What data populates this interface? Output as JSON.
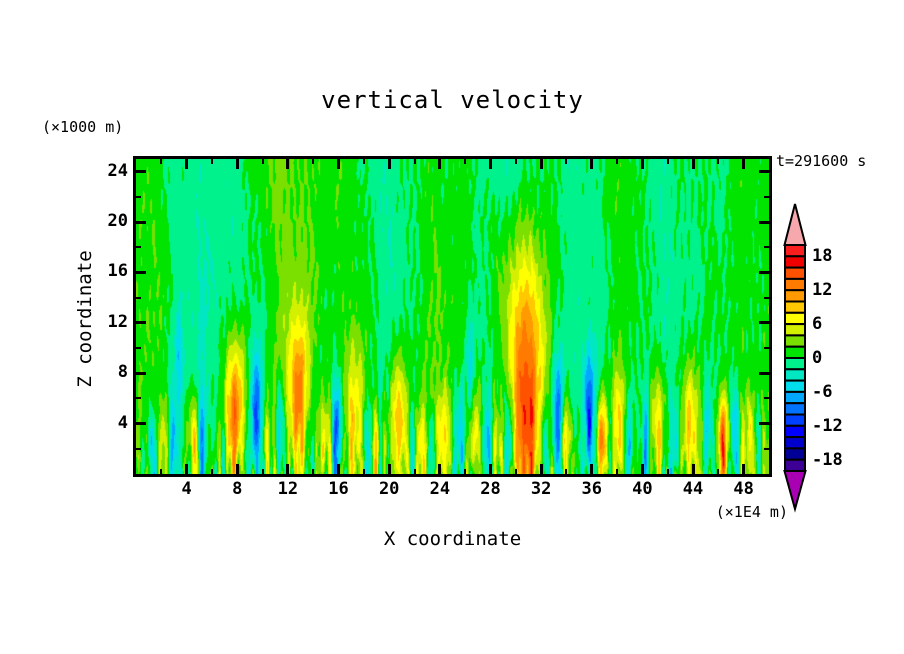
{
  "title": "vertical velocity",
  "labels": {
    "y_unit": "(×1000 m)",
    "x_unit": "(×1E4 m)",
    "time": "t=291600 s",
    "x_axis": "X coordinate",
    "y_axis": "Z coordinate"
  },
  "chart_data": {
    "type": "contour",
    "title": "vertical velocity",
    "xlabel": "X coordinate",
    "ylabel": "Z coordinate",
    "x_unit": "(×1E4 m)",
    "z_unit": "(×1000 m)",
    "time_label": "t=291600 s",
    "x_range": [
      0,
      50
    ],
    "z_range": [
      0,
      25
    ],
    "x_ticks_major": [
      4,
      8,
      12,
      16,
      20,
      24,
      28,
      32,
      36,
      40,
      44,
      48
    ],
    "x_ticks_minor": [
      2,
      6,
      10,
      14,
      18,
      22,
      26,
      30,
      34,
      38,
      42,
      46
    ],
    "z_ticks_major": [
      4,
      8,
      12,
      16,
      20,
      24
    ],
    "z_ticks_minor": [
      2,
      6,
      10,
      14,
      18,
      22
    ],
    "contour_interval": 2,
    "level_min": -20,
    "level_max": 20,
    "colorbar_labels": [
      18,
      12,
      6,
      0,
      -6,
      -12,
      -18
    ],
    "palette": {
      "under": "#aa00b4",
      "over": "#f7a8ac",
      "colors": [
        "#3c0096",
        "#000096",
        "#0000cd",
        "#0000ff",
        "#0041ff",
        "#0074ff",
        "#00a8ff",
        "#00dcec",
        "#00e7c2",
        "#00f28c",
        "#00e400",
        "#7be000",
        "#d3f000",
        "#ffff00",
        "#ffc800",
        "#ff9b00",
        "#ff7a00",
        "#ff5200",
        "#f10000",
        "#fb1e1e"
      ]
    },
    "field": {
      "seed": 9,
      "background": {
        "offset": 0.85,
        "waves": [
          {
            "fx": 0.52,
            "ph": 1.9,
            "amp": 0.95,
            "zf": 0.16,
            "za": 0.5
          },
          {
            "fx": 0.23,
            "ph": 4.0,
            "amp": 0.65,
            "zf": 0.11,
            "za": 0.6
          },
          {
            "fx": 1.15,
            "ph": 0.7,
            "amp": 0.5,
            "zf": 0.28,
            "za": 0.8
          },
          {
            "fx": 2.6,
            "ph": 3.3,
            "amp": 0.35,
            "zf": 0.5,
            "za": 0.7
          }
        ]
      },
      "upper_cool_bands": [
        {
          "x": 6,
          "w": 2.5,
          "amp": -1.3
        },
        {
          "x": 21,
          "w": 2.6,
          "amp": -1.9
        },
        {
          "x": 28.6,
          "w": 2.2,
          "amp": -1.5
        },
        {
          "x": 34.8,
          "w": 3.0,
          "amp": -2.3
        },
        {
          "x": 41,
          "w": 1.8,
          "amp": -1.2
        },
        {
          "x": 45.3,
          "w": 2.4,
          "amp": -1.8
        },
        {
          "x": 49.5,
          "w": 1.5,
          "amp": -1.5
        }
      ],
      "updrafts": [
        {
          "x": 2.3,
          "a": 5,
          "zp": 2.5,
          "sz": 3.5,
          "w0": 0.4,
          "wg": 0.02
        },
        {
          "x": 4.6,
          "a": 7,
          "zp": 2.5,
          "sz": 4,
          "w0": 0.5,
          "wg": 0.02
        },
        {
          "x": 6.1,
          "a": 5,
          "zp": 2,
          "sz": 3,
          "w0": 0.35,
          "wg": 0.02
        },
        {
          "x": 7.8,
          "a": 14,
          "zp": 5,
          "sz": 5.5,
          "w0": 0.55,
          "wg": 0.035
        },
        {
          "x": 10.3,
          "a": 4,
          "zp": 2,
          "sz": 3,
          "w0": 0.3,
          "wg": 0.02
        },
        {
          "x": 12.8,
          "a": 12,
          "zp": 6,
          "sz": 6,
          "w0": 0.5,
          "wg": 0.035
        },
        {
          "x": 14.9,
          "a": 7,
          "zp": 2.5,
          "sz": 3.5,
          "w0": 0.35,
          "wg": 0.02
        },
        {
          "x": 17.3,
          "a": 8,
          "zp": 4,
          "sz": 6.5,
          "w0": 0.5,
          "wg": 0.03
        },
        {
          "x": 19.0,
          "a": 5,
          "zp": 2,
          "sz": 3,
          "w0": 0.3,
          "wg": 0.02
        },
        {
          "x": 20.7,
          "a": 8,
          "zp": 4.5,
          "sz": 5,
          "w0": 0.45,
          "wg": 0.03
        },
        {
          "x": 22.5,
          "a": 5,
          "zp": 2,
          "sz": 3,
          "w0": 0.3,
          "wg": 0.02
        },
        {
          "x": 24.3,
          "a": 7,
          "zp": 3,
          "sz": 4,
          "w0": 0.4,
          "wg": 0.02
        },
        {
          "x": 26.8,
          "a": 6,
          "zp": 3,
          "sz": 4.5,
          "w0": 0.4,
          "wg": 0.02
        },
        {
          "x": 28.7,
          "a": 5,
          "zp": 2,
          "sz": 3,
          "w0": 0.3,
          "wg": 0.02
        },
        {
          "x": 30.8,
          "a": 17,
          "zp": 6,
          "sz": 12,
          "w0": 1.05,
          "wg": 0.055
        },
        {
          "x": 33.9,
          "a": 6,
          "zp": 2.5,
          "sz": 3.5,
          "w0": 0.35,
          "wg": 0.02
        },
        {
          "x": 36.8,
          "a": 13,
          "zp": 2.5,
          "sz": 3.5,
          "w0": 0.3,
          "wg": 0.015
        },
        {
          "x": 38.2,
          "a": 7,
          "zp": 4,
          "sz": 5,
          "w0": 0.4,
          "wg": 0.025
        },
        {
          "x": 41.2,
          "a": 8,
          "zp": 4,
          "sz": 5,
          "w0": 0.45,
          "wg": 0.025
        },
        {
          "x": 43.8,
          "a": 8,
          "zp": 4,
          "sz": 5,
          "w0": 0.45,
          "wg": 0.025
        },
        {
          "x": 46.4,
          "a": 13,
          "zp": 2.5,
          "sz": 3.5,
          "w0": 0.3,
          "wg": 0.015
        },
        {
          "x": 48.6,
          "a": 6,
          "zp": 2.5,
          "sz": 3.5,
          "w0": 0.35,
          "wg": 0.02
        }
      ],
      "downdrafts": [
        {
          "x": 1.2,
          "a": -6,
          "zp": 2,
          "sz": 3,
          "w0": 0.22,
          "wg": 0.01
        },
        {
          "x": 2.9,
          "a": -7,
          "zp": 2.5,
          "sz": 3.5,
          "w0": 0.25,
          "wg": 0.01
        },
        {
          "x": 3.4,
          "a": -5,
          "zp": 9,
          "sz": 4,
          "w0": 0.22,
          "wg": 0.01
        },
        {
          "x": 5.2,
          "a": -9,
          "zp": 3,
          "sz": 3.5,
          "w0": 0.25,
          "wg": 0.012
        },
        {
          "x": 6.0,
          "a": -7,
          "zp": 2,
          "sz": 3,
          "w0": 0.2,
          "wg": 0.01
        },
        {
          "x": 9.5,
          "a": -13,
          "zp": 4,
          "sz": 5.5,
          "w0": 0.32,
          "wg": 0.02
        },
        {
          "x": 11.4,
          "a": -8,
          "zp": 3,
          "sz": 4,
          "w0": 0.25,
          "wg": 0.012
        },
        {
          "x": 15.9,
          "a": -11,
          "zp": 3.5,
          "sz": 4,
          "w0": 0.28,
          "wg": 0.015
        },
        {
          "x": 18.2,
          "a": -6,
          "zp": 2,
          "sz": 3,
          "w0": 0.2,
          "wg": 0.01
        },
        {
          "x": 21.8,
          "a": -6,
          "zp": 2.5,
          "sz": 3,
          "w0": 0.2,
          "wg": 0.01
        },
        {
          "x": 23.3,
          "a": -5,
          "zp": 2,
          "sz": 2.5,
          "w0": 0.2,
          "wg": 0.01
        },
        {
          "x": 25.6,
          "a": -8,
          "zp": 3,
          "sz": 4,
          "w0": 0.25,
          "wg": 0.012
        },
        {
          "x": 26.4,
          "a": -6,
          "zp": 8,
          "sz": 4,
          "w0": 0.22,
          "wg": 0.01
        },
        {
          "x": 27.7,
          "a": -7,
          "zp": 2.5,
          "sz": 3.5,
          "w0": 0.22,
          "wg": 0.01
        },
        {
          "x": 29.5,
          "a": -8,
          "zp": 3,
          "sz": 3.5,
          "w0": 0.25,
          "wg": 0.012
        },
        {
          "x": 32.2,
          "a": -7,
          "zp": 2.5,
          "sz": 3.5,
          "w0": 0.25,
          "wg": 0.012
        },
        {
          "x": 33.3,
          "a": -12,
          "zp": 4,
          "sz": 5,
          "w0": 0.3,
          "wg": 0.018
        },
        {
          "x": 35.8,
          "a": -13,
          "zp": 4,
          "sz": 5,
          "w0": 0.3,
          "wg": 0.018
        },
        {
          "x": 38.9,
          "a": -7,
          "zp": 2.5,
          "sz": 3.5,
          "w0": 0.22,
          "wg": 0.01
        },
        {
          "x": 40.3,
          "a": -7,
          "zp": 2.5,
          "sz": 3.5,
          "w0": 0.22,
          "wg": 0.01
        },
        {
          "x": 42.6,
          "a": -7,
          "zp": 2.5,
          "sz": 3.5,
          "w0": 0.22,
          "wg": 0.01
        },
        {
          "x": 45.2,
          "a": -9,
          "zp": 3,
          "sz": 4,
          "w0": 0.25,
          "wg": 0.012
        },
        {
          "x": 47.3,
          "a": -9,
          "zp": 3,
          "sz": 4,
          "w0": 0.25,
          "wg": 0.012
        },
        {
          "x": 49.0,
          "a": -7,
          "zp": 2.5,
          "sz": 3,
          "w0": 0.22,
          "wg": 0.01
        }
      ],
      "surface_noise": {
        "components": 24,
        "jitter_components": 4,
        "jitter_amp": 0.3
      }
    }
  }
}
